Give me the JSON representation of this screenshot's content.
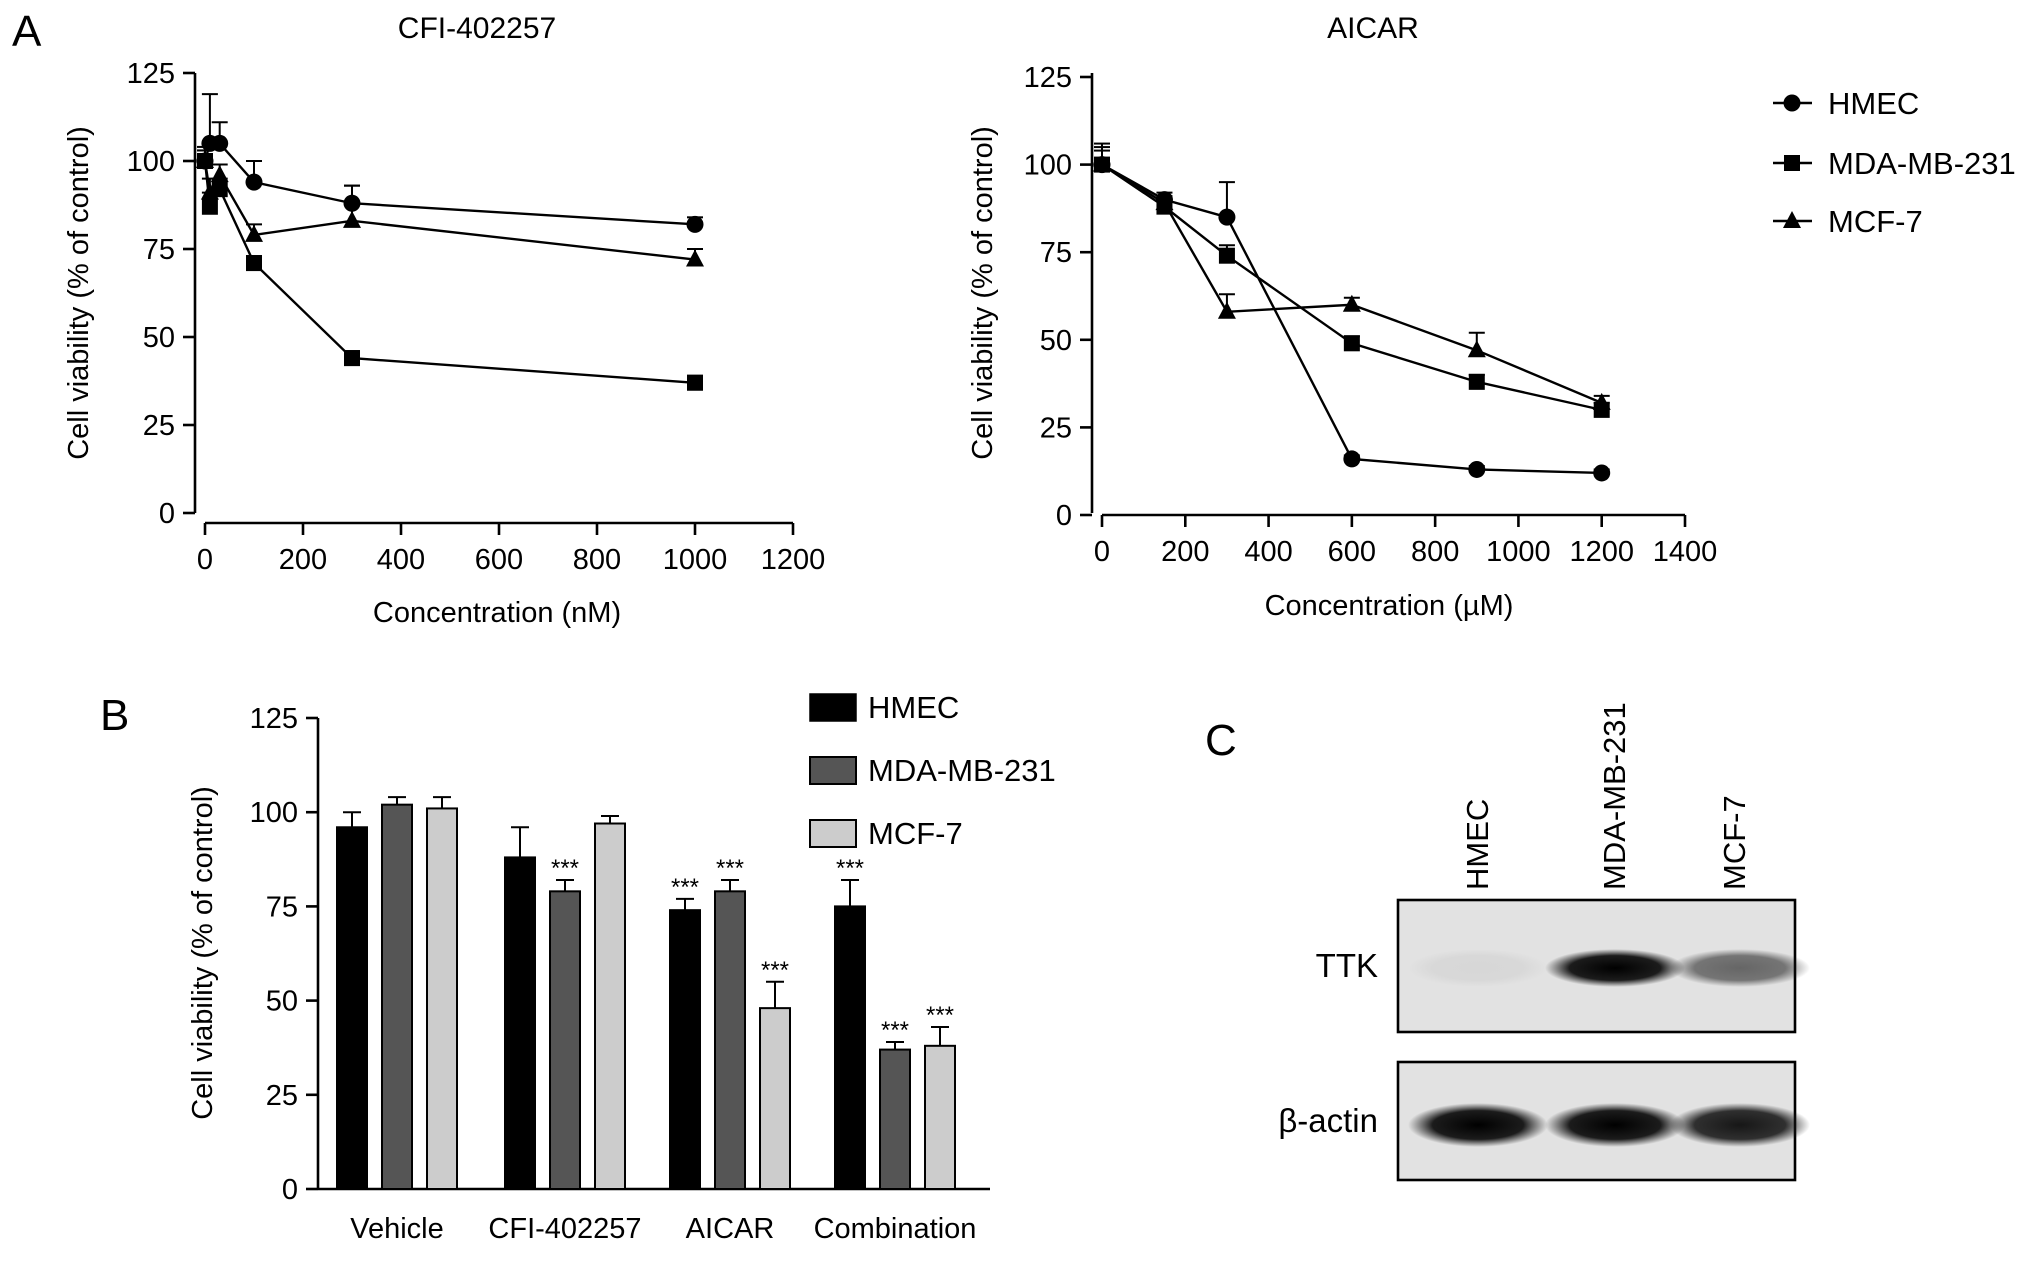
{
  "panels": {
    "a": "A",
    "b": "B",
    "c": "C"
  },
  "chart_data": [
    {
      "type": "line",
      "title": "CFI-402257",
      "xlabel": "Concentration (nM)",
      "ylabel": "Cell viability (% of control)",
      "xlim": [
        0,
        1200
      ],
      "ylim": [
        0,
        125
      ],
      "xticks": [
        "0",
        "200",
        "400",
        "600",
        "800",
        "1000",
        "1200"
      ],
      "yticks": [
        "0",
        "25",
        "50",
        "75",
        "100",
        "125"
      ],
      "series": [
        {
          "name": "HMEC",
          "marker": "circle",
          "x": [
            0,
            10,
            30,
            100,
            300,
            1000
          ],
          "y": [
            100,
            105,
            105,
            94,
            88,
            82
          ],
          "err": [
            3,
            14,
            6,
            6,
            5,
            2
          ]
        },
        {
          "name": "MDA-MB-231",
          "marker": "square",
          "x": [
            0,
            10,
            30,
            100,
            300,
            1000
          ],
          "y": [
            100,
            87,
            92,
            71,
            44,
            37
          ],
          "err": [
            3,
            4,
            3,
            2,
            2,
            2
          ]
        },
        {
          "name": "MCF-7",
          "marker": "triangle",
          "x": [
            0,
            10,
            30,
            100,
            300,
            1000
          ],
          "y": [
            100,
            91,
            96,
            79,
            83,
            72
          ],
          "err": [
            4,
            4,
            3,
            3,
            10,
            3
          ]
        }
      ]
    },
    {
      "type": "line",
      "title": "AICAR",
      "xlabel": "Concentration (µM)",
      "ylabel": "Cell viability (% of control)",
      "xlim": [
        0,
        1400
      ],
      "ylim": [
        0,
        125
      ],
      "xticks": [
        "0",
        "200",
        "400",
        "600",
        "800",
        "1000",
        "1200",
        "1400"
      ],
      "yticks": [
        "0",
        "25",
        "50",
        "75",
        "100",
        "125"
      ],
      "legend_position": "right",
      "series": [
        {
          "name": "HMEC",
          "marker": "circle",
          "x": [
            0,
            150,
            300,
            600,
            900,
            1200
          ],
          "y": [
            100,
            90,
            85,
            16,
            13,
            12
          ],
          "err": [
            6,
            2,
            10,
            1,
            1,
            1
          ]
        },
        {
          "name": "MDA-MB-231",
          "marker": "square",
          "x": [
            0,
            150,
            300,
            600,
            900,
            1200
          ],
          "y": [
            100,
            88,
            74,
            49,
            38,
            30
          ],
          "err": [
            5,
            2,
            3,
            2,
            2,
            2
          ]
        },
        {
          "name": "MCF-7",
          "marker": "triangle",
          "x": [
            0,
            150,
            300,
            600,
            900,
            1200
          ],
          "y": [
            100,
            89,
            58,
            60,
            47,
            32
          ],
          "err": [
            4,
            2,
            5,
            2,
            5,
            2
          ]
        }
      ]
    },
    {
      "type": "bar",
      "ylabel": "Cell viability (% of control)",
      "ylim": [
        0,
        125
      ],
      "yticks": [
        "0",
        "25",
        "50",
        "75",
        "100",
        "125"
      ],
      "categories": [
        "Vehicle",
        "CFI-402257",
        "AICAR",
        "Combination"
      ],
      "legend_position": "top-right",
      "series": [
        {
          "name": "HMEC",
          "color": "#000000",
          "values": [
            96,
            88,
            74,
            75
          ],
          "err": [
            4,
            8,
            3,
            7
          ],
          "sig": [
            "",
            "",
            "***",
            "***"
          ]
        },
        {
          "name": "MDA-MB-231",
          "color": "#555555",
          "values": [
            102,
            79,
            79,
            37
          ],
          "err": [
            2,
            3,
            3,
            2
          ],
          "sig": [
            "",
            "***",
            "***",
            "***"
          ]
        },
        {
          "name": "MCF-7",
          "color": "#cccccc",
          "values": [
            101,
            97,
            48,
            38
          ],
          "err": [
            3,
            2,
            7,
            5
          ],
          "sig": [
            "",
            "",
            "***",
            "***"
          ]
        }
      ]
    }
  ],
  "blot": {
    "lanes": [
      "HMEC",
      "MDA-MB-231",
      "MCF-7"
    ],
    "rows": [
      {
        "label": "TTK",
        "intensity": [
          0.05,
          1.0,
          0.55
        ]
      },
      {
        "label": "β-actin",
        "intensity": [
          1.0,
          1.0,
          0.9
        ]
      }
    ]
  }
}
